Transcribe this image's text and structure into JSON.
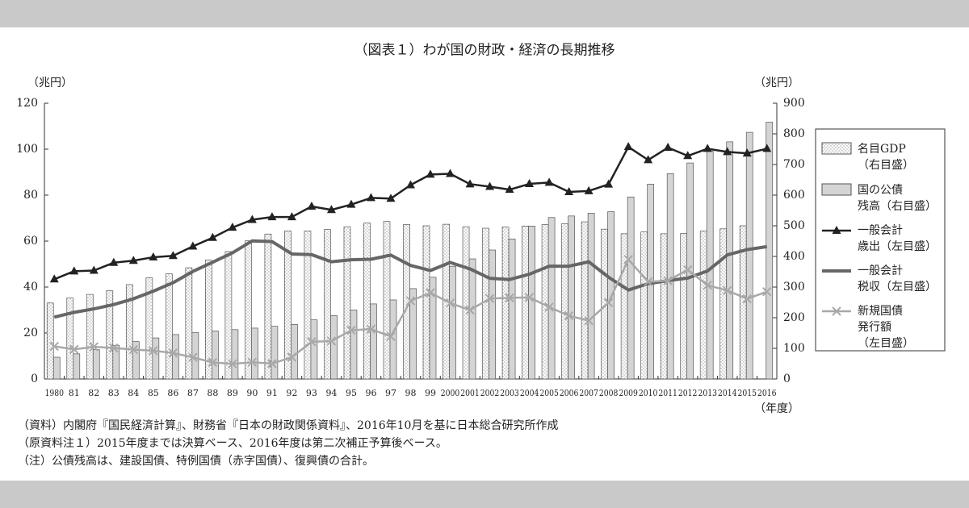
{
  "chart_data": {
    "type": "bar",
    "title": "（図表１）わが国の財政・経済の長期推移",
    "y_unit": "（兆円）",
    "y2_unit": "（兆円）",
    "x_unit": "（年度）",
    "categories": [
      "1980",
      "81",
      "82",
      "83",
      "84",
      "85",
      "86",
      "87",
      "88",
      "89",
      "90",
      "91",
      "92",
      "93",
      "94",
      "95",
      "96",
      "97",
      "98",
      "99",
      "2000",
      "2001",
      "2002",
      "2003",
      "2004",
      "2005",
      "2006",
      "2007",
      "2008",
      "2009",
      "2010",
      "2011",
      "2012",
      "2013",
      "2014",
      "2015",
      "2016"
    ],
    "ylim": [
      0,
      120
    ],
    "yticks": [
      0,
      20,
      40,
      60,
      80,
      100,
      120
    ],
    "y2lim": [
      0,
      900
    ],
    "y2ticks": [
      0,
      100,
      200,
      300,
      400,
      500,
      600,
      700,
      800,
      900
    ],
    "series": [
      {
        "name": [
          "名目GDP",
          "（右目盛）"
        ],
        "type": "bar",
        "axis": "y2",
        "color": "#ffffff",
        "values": [
          248,
          264,
          276,
          288,
          308,
          330,
          343,
          363,
          388,
          416,
          451,
          473,
          483,
          483,
          488,
          497,
          509,
          514,
          504,
          500,
          505,
          497,
          492,
          496,
          499,
          504,
          507,
          513,
          489,
          474,
          480,
          474,
          475,
          483,
          490,
          500,
          null
        ]
      },
      {
        "name": [
          "国の公債",
          "残高（右目盛）"
        ],
        "type": "bar",
        "axis": "y2",
        "color": "#d4d4d4",
        "values": [
          71,
          82,
          96,
          110,
          122,
          134,
          145,
          152,
          157,
          161,
          166,
          172,
          178,
          193,
          207,
          225,
          245,
          258,
          295,
          332,
          368,
          392,
          421,
          457,
          499,
          527,
          532,
          541,
          546,
          594,
          636,
          670,
          705,
          744,
          774,
          805,
          838
        ]
      },
      {
        "name": [
          "一般会計",
          "歳出（左目盛）"
        ],
        "type": "line",
        "axis": "y",
        "color": "#222222",
        "marker": "triangle",
        "values": [
          43.4,
          46.9,
          47.2,
          50.6,
          51.5,
          53.0,
          53.6,
          57.7,
          61.5,
          65.9,
          69.3,
          70.5,
          70.5,
          75.1,
          73.6,
          75.9,
          78.8,
          78.5,
          84.4,
          89.0,
          89.3,
          84.8,
          83.7,
          82.4,
          84.9,
          85.5,
          81.4,
          81.8,
          84.7,
          101.0,
          95.3,
          100.7,
          97.1,
          100.2,
          98.8,
          98.2,
          100.2
        ]
      },
      {
        "name": [
          "一般会計",
          "税収（左目盛）"
        ],
        "type": "line",
        "axis": "y",
        "color": "#666666",
        "marker": "none",
        "values": [
          26.9,
          29.0,
          30.5,
          32.4,
          34.9,
          38.2,
          41.9,
          46.8,
          50.8,
          54.9,
          60.1,
          59.8,
          54.4,
          54.1,
          51.0,
          51.9,
          52.1,
          53.9,
          49.4,
          47.2,
          50.7,
          47.9,
          43.8,
          43.3,
          45.6,
          49.1,
          49.1,
          51.0,
          44.3,
          38.7,
          41.5,
          42.8,
          43.9,
          47.0,
          54.0,
          56.3,
          57.6
        ]
      },
      {
        "name": [
          "新規国債",
          "発行額",
          "（左目盛）"
        ],
        "type": "line",
        "axis": "y",
        "color": "#a8a8a8",
        "marker": "cross",
        "values": [
          14.2,
          12.9,
          14.0,
          13.5,
          12.8,
          12.3,
          11.3,
          9.4,
          7.2,
          6.6,
          7.3,
          6.7,
          9.5,
          16.2,
          16.5,
          21.2,
          21.7,
          18.5,
          34.0,
          37.5,
          33.0,
          30.0,
          35.0,
          35.3,
          35.5,
          31.3,
          27.5,
          25.4,
          33.2,
          52.0,
          42.3,
          42.8,
          47.5,
          40.8,
          38.5,
          34.9,
          38.0
        ]
      }
    ],
    "notes": [
      "（資料）内閣府『国民経済計算』、財務省『日本の財政関係資料』、2016年10月を基に日本総合研究所作成",
      "（原資料注１）2015年度までは決算ベース、2016年度は第二次補正予算後ベース。",
      "（注）公債残高は、建設国債、特例国債（赤字国債）、復興債の合計。"
    ]
  }
}
